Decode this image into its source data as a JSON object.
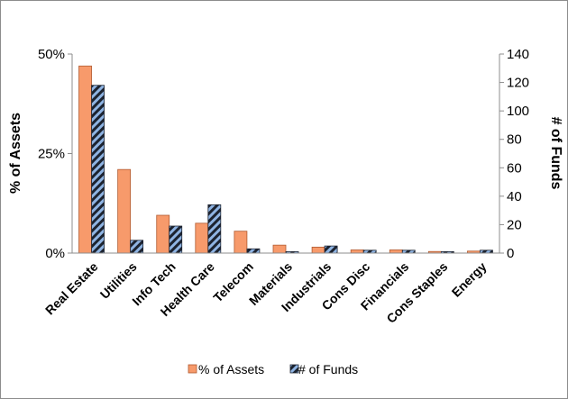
{
  "chart_data": {
    "type": "bar",
    "categories": [
      "Real Estate",
      "Utilities",
      "Info Tech",
      "Health Care",
      "Telecom",
      "Materials",
      "Industrials",
      "Cons Disc",
      "Financials",
      "Cons Staples",
      "Energy"
    ],
    "series": [
      {
        "name": "% of Assets",
        "axis": "left",
        "color": "#f79a6b",
        "values": [
          47,
          21,
          9.5,
          7.5,
          5.5,
          2,
          1.5,
          0.8,
          0.8,
          0.4,
          0.5
        ]
      },
      {
        "name": "# of Funds",
        "axis": "right",
        "color": "#8fb4e3",
        "pattern": "dark diagonal hatch",
        "values": [
          118,
          9,
          19,
          34,
          3,
          1,
          5,
          2,
          2,
          1,
          2
        ]
      }
    ],
    "left_axis": {
      "label": "% of Assets",
      "ylim": [
        0,
        50
      ],
      "ticks": [
        0,
        25,
        50
      ],
      "tick_labels": [
        "0%",
        "25%",
        "50%"
      ]
    },
    "right_axis": {
      "label": "# of Funds",
      "ylim": [
        0,
        140
      ],
      "ticks": [
        0,
        20,
        40,
        60,
        80,
        100,
        120,
        140
      ],
      "tick_labels": [
        "0",
        "20",
        "40",
        "60",
        "80",
        "100",
        "120",
        "140"
      ]
    },
    "grid": false,
    "legend": "bottom"
  }
}
